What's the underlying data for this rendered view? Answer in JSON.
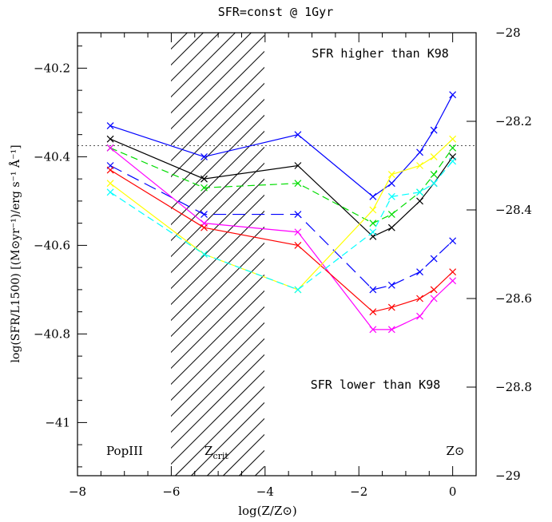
{
  "chart_data": {
    "type": "line",
    "title": "SFR=const @ 1Gyr",
    "xlabel": "log(Z/Z⊙)",
    "ylabel": "log(SFR/L1500) [(M⊙yr⁻¹)/erg s⁻¹ Å⁻¹]",
    "xlim": [
      -8,
      0.5
    ],
    "ylim": [
      -41.12,
      -40.12
    ],
    "y2lim": [
      -29,
      -28
    ],
    "x_ticks": [
      "−8",
      "−6",
      "−4",
      "−2",
      "0"
    ],
    "y_ticks": [
      "−40.2",
      "−40.4",
      "−40.6",
      "−40.8",
      "−41"
    ],
    "y2_ticks": [
      "−28",
      "−28.2",
      "−28.4",
      "−28.6",
      "−28.8",
      "−29"
    ],
    "reference_line": -40.375,
    "hatch_region": [
      -6,
      -4
    ],
    "annotations": {
      "upper": "SFR higher than K98",
      "lower": "SFR lower than K98",
      "popiii": "PopIII",
      "zcrit": "Z",
      "zcrit_sub": "crit",
      "zsun": "Z⊙"
    },
    "series": [
      {
        "color": "#0000ff",
        "dash": "solid",
        "x": [
          -7.3,
          -5.3,
          -3.3,
          -1.7,
          -1.3,
          -0.7,
          -0.4,
          0.0
        ],
        "values": [
          -40.33,
          -40.4,
          -40.35,
          -40.49,
          -40.46,
          -40.39,
          -40.34,
          -40.26
        ]
      },
      {
        "color": "#000000",
        "dash": "solid",
        "x": [
          -7.3,
          -5.3,
          -3.3,
          -1.7,
          -1.3,
          -0.7,
          -0.4,
          0.0
        ],
        "values": [
          -40.36,
          -40.45,
          -40.42,
          -40.58,
          -40.56,
          -40.5,
          -40.46,
          -40.4
        ]
      },
      {
        "color": "#00dd00",
        "dash": "dashed",
        "x": [
          -7.3,
          -5.3,
          -3.3,
          -1.7,
          -1.3,
          -0.7,
          -0.4,
          0.0
        ],
        "values": [
          -40.38,
          -40.47,
          -40.46,
          -40.55,
          -40.53,
          -40.48,
          -40.44,
          -40.38
        ]
      },
      {
        "color": "#0000ff",
        "dash": "longdash",
        "x": [
          -7.3,
          -5.3,
          -3.3,
          -1.7,
          -1.3,
          -0.7,
          -0.4,
          0.0
        ],
        "values": [
          -40.42,
          -40.53,
          -40.53,
          -40.7,
          -40.69,
          -40.66,
          -40.63,
          -40.59
        ]
      },
      {
        "color": "#ff00ff",
        "dash": "solid",
        "x": [
          -7.3,
          -5.3,
          -3.3,
          -1.7,
          -1.3,
          -0.7,
          -0.4,
          0.0
        ],
        "values": [
          -40.38,
          -40.55,
          -40.57,
          -40.79,
          -40.79,
          -40.76,
          -40.72,
          -40.68
        ]
      },
      {
        "color": "#ff0000",
        "dash": "solid",
        "x": [
          -7.3,
          -5.3,
          -3.3,
          -1.7,
          -1.3,
          -0.7,
          -0.4,
          0.0
        ],
        "values": [
          -40.43,
          -40.56,
          -40.6,
          -40.75,
          -40.74,
          -40.72,
          -40.7,
          -40.66
        ]
      },
      {
        "color": "#ffff00",
        "dash": "solid",
        "x": [
          -7.3,
          -5.3,
          -3.3,
          -1.7,
          -1.3,
          -0.7,
          -0.4,
          0.0
        ],
        "values": [
          -40.46,
          -40.62,
          -40.7,
          -40.52,
          -40.44,
          -40.42,
          -40.4,
          -40.36
        ]
      },
      {
        "color": "#00ffff",
        "dash": "dashed",
        "x": [
          -7.3,
          -5.3,
          -3.3,
          -1.7,
          -1.3,
          -0.7,
          -0.4,
          0.0
        ],
        "values": [
          -40.48,
          -40.62,
          -40.7,
          -40.57,
          -40.49,
          -40.48,
          -40.46,
          -40.41
        ]
      }
    ]
  }
}
